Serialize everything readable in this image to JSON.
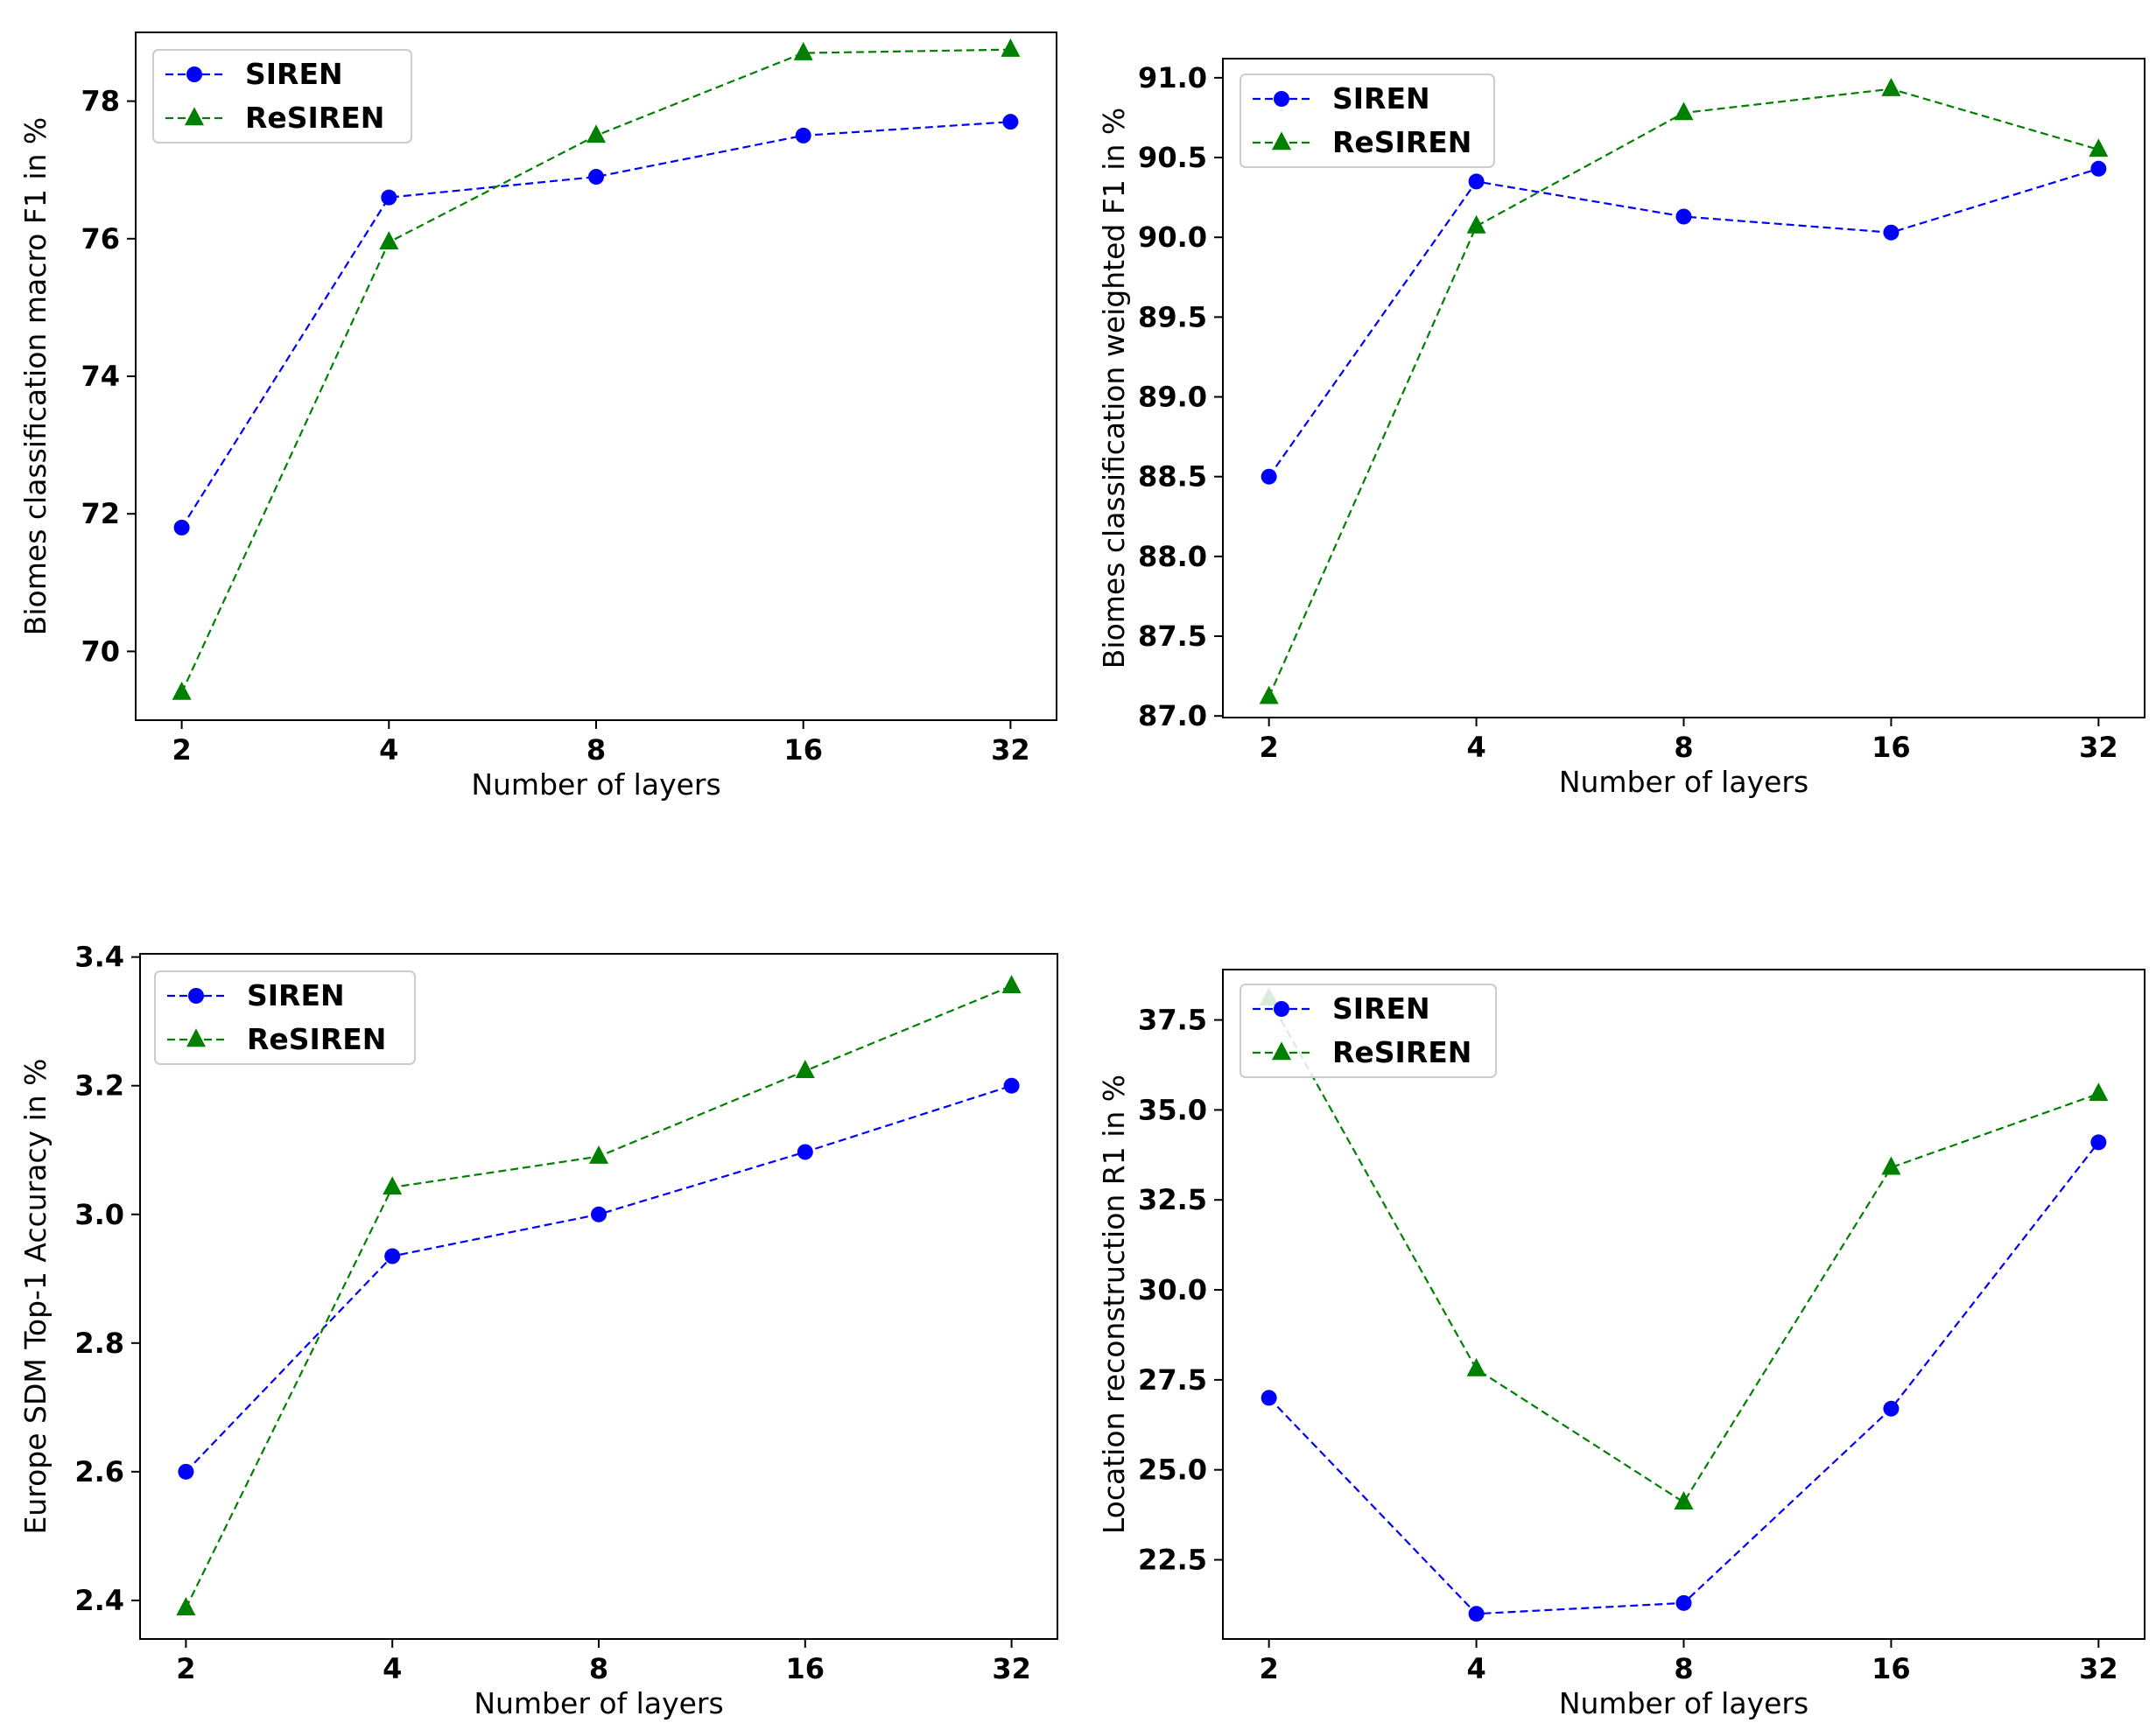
{
  "figure": {
    "colors": {
      "siren": "#0000ff",
      "resiren": "#008000"
    }
  },
  "chart_data": [
    {
      "type": "line",
      "categories": [
        "2",
        "4",
        "8",
        "16",
        "32"
      ],
      "xlabel": "Number of layers",
      "ylabel": "Biomes classification macro F1 in %",
      "ylim": [
        69.0,
        79.0
      ],
      "yticks": [
        70,
        72,
        74,
        76,
        78
      ],
      "ytick_labels": [
        "70",
        "72",
        "74",
        "76",
        "78"
      ],
      "legend_position": "upper-left",
      "series": [
        {
          "name": "SIREN",
          "marker": "circle",
          "color": "#0000ff",
          "values": [
            71.8,
            76.6,
            76.9,
            77.5,
            77.7
          ]
        },
        {
          "name": "ReSIREN",
          "marker": "triangle",
          "color": "#008000",
          "values": [
            69.4,
            75.95,
            77.5,
            78.7,
            78.75
          ]
        }
      ]
    },
    {
      "type": "line",
      "categories": [
        "2",
        "4",
        "8",
        "16",
        "32"
      ],
      "xlabel": "Number of layers",
      "ylabel": "Biomes classification weighted F1 in %",
      "ylim": [
        86.99,
        91.12
      ],
      "yticks": [
        87.0,
        87.5,
        88.0,
        88.5,
        89.0,
        89.5,
        90.0,
        90.5,
        91.0
      ],
      "ytick_labels": [
        "87.0",
        "87.5",
        "88.0",
        "88.5",
        "89.0",
        "89.5",
        "90.0",
        "90.5",
        "91.0"
      ],
      "legend_position": "upper-left",
      "series": [
        {
          "name": "SIREN",
          "marker": "circle",
          "color": "#0000ff",
          "values": [
            88.5,
            90.35,
            90.13,
            90.03,
            90.43
          ]
        },
        {
          "name": "ReSIREN",
          "marker": "triangle",
          "color": "#008000",
          "values": [
            87.12,
            90.07,
            90.78,
            90.93,
            90.55
          ]
        }
      ]
    },
    {
      "type": "line",
      "categories": [
        "2",
        "4",
        "8",
        "16",
        "32"
      ],
      "xlabel": "Number of layers",
      "ylabel": "Europe SDM Top-1 Accuracy in %",
      "ylim": [
        2.34,
        3.405
      ],
      "yticks": [
        2.4,
        2.6,
        2.8,
        3.0,
        3.2,
        3.4
      ],
      "ytick_labels": [
        "2.4",
        "2.6",
        "2.8",
        "3.0",
        "3.2",
        "3.4"
      ],
      "legend_position": "upper-left",
      "series": [
        {
          "name": "SIREN",
          "marker": "circle",
          "color": "#0000ff",
          "values": [
            2.6,
            2.935,
            3.0,
            3.097,
            3.2
          ]
        },
        {
          "name": "ReSIREN",
          "marker": "triangle",
          "color": "#008000",
          "values": [
            2.388,
            3.042,
            3.09,
            3.223,
            3.355
          ]
        }
      ]
    },
    {
      "type": "line",
      "categories": [
        "2",
        "4",
        "8",
        "16",
        "32"
      ],
      "xlabel": "Number of layers",
      "ylabel": "Location reconstruction R1 in %",
      "ylim": [
        20.3,
        38.9
      ],
      "yticks": [
        22.5,
        25.0,
        27.5,
        30.0,
        32.5,
        35.0,
        37.5
      ],
      "ytick_labels": [
        "22.5",
        "25.0",
        "27.5",
        "30.0",
        "32.5",
        "35.0",
        "37.5"
      ],
      "legend_position": "upper-left",
      "series": [
        {
          "name": "SIREN",
          "marker": "circle",
          "color": "#0000ff",
          "values": [
            27.0,
            21.0,
            21.3,
            26.7,
            34.1
          ]
        },
        {
          "name": "ReSIREN",
          "marker": "triangle",
          "color": "#008000",
          "values": [
            38.1,
            27.8,
            24.1,
            33.4,
            35.45
          ]
        }
      ]
    }
  ]
}
